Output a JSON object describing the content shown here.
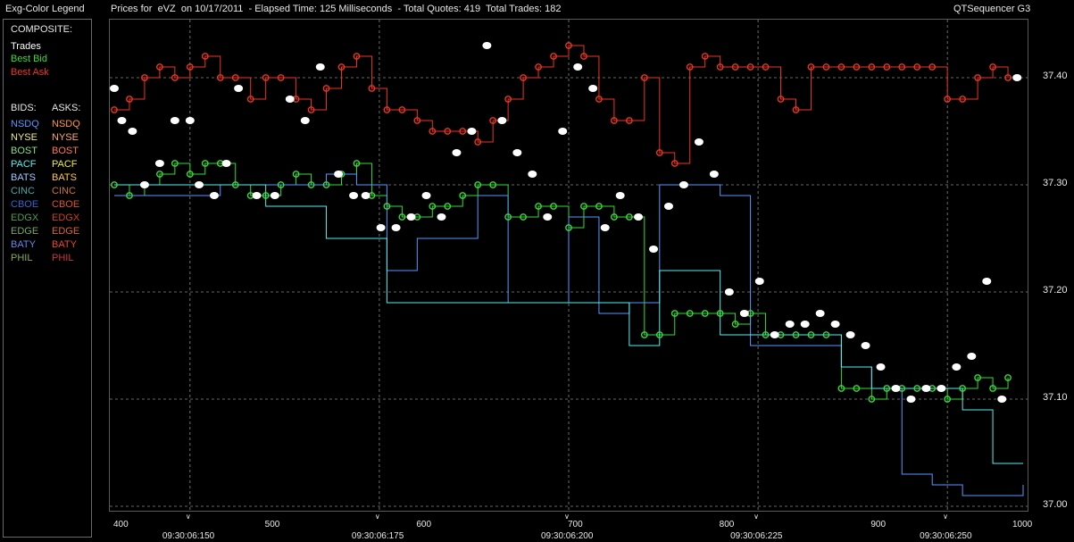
{
  "window": {
    "legend_title": "Exg-Color Legend",
    "chart_title": "Prices for  eVZ  on 10/17/2011  - Elapsed Time: 125 Milliseconds  - Total Quotes: 419  Total Trades: 182",
    "app_name": "QTSequencer G3"
  },
  "legend": {
    "composite_label": "COMPOSITE:",
    "composite_items": [
      {
        "label": "Trades",
        "color": "#ffffff"
      },
      {
        "label": "Best Bid",
        "color": "#33dd33"
      },
      {
        "label": "Best Ask",
        "color": "#ee3322"
      }
    ],
    "bids_label": "BIDS:",
    "asks_label": "ASKS:",
    "exchanges": [
      {
        "bid": "NSDQ",
        "ask": "NSDQ",
        "bid_color": "#5599ff",
        "ask_color": "#ff9933"
      },
      {
        "bid": "NYSE",
        "ask": "NYSE",
        "bid_color": "#eeee88",
        "ask_color": "#ffaa66"
      },
      {
        "bid": "BOST",
        "ask": "BOST",
        "bid_color": "#88dd88",
        "ask_color": "#ff7755"
      },
      {
        "bid": "PACF",
        "ask": "PACF",
        "bid_color": "#55eeee",
        "ask_color": "#eeee33"
      },
      {
        "bid": "BATS",
        "ask": "BATS",
        "bid_color": "#99ccff",
        "ask_color": "#ffcc33"
      },
      {
        "bid": "CINC",
        "ask": "CINC",
        "bid_color": "#44aaaa",
        "ask_color": "#cc7733"
      },
      {
        "bid": "CBOE",
        "ask": "CBOE",
        "bid_color": "#3366cc",
        "ask_color": "#dd5522"
      },
      {
        "bid": "EDGX",
        "ask": "EDGX",
        "bid_color": "#559955",
        "ask_color": "#cc4422"
      },
      {
        "bid": "EDGE",
        "ask": "EDGE",
        "bid_color": "#77aa66",
        "ask_color": "#dd6633"
      },
      {
        "bid": "BATY",
        "ask": "BATY",
        "bid_color": "#6688ee",
        "ask_color": "#ee4433"
      },
      {
        "bid": "PHIL",
        "ask": "PHIL",
        "bid_color": "#88aa55",
        "ask_color": "#cc3344"
      }
    ]
  },
  "chart_data": {
    "type": "scatter",
    "title": "Prices for  eVZ  on 10/17/2011",
    "xlabel": "",
    "ylabel": "",
    "xlim": [
      400,
      1000
    ],
    "ylim": [
      37.0,
      37.45
    ],
    "x_ticks": [
      "400",
      "500",
      "600",
      "700",
      "800",
      "900",
      "1000"
    ],
    "time_ticks": [
      {
        "x": 450,
        "label": "09:30:06:150"
      },
      {
        "x": 575,
        "label": "09:30:06:175"
      },
      {
        "x": 700,
        "label": "09:30:06:200"
      },
      {
        "x": 825,
        "label": "09:30:06:225"
      },
      {
        "x": 950,
        "label": "09:30:06:250"
      }
    ],
    "y_ticks": [
      "37.40",
      "37.30",
      "37.20",
      "37.10",
      "37.00"
    ],
    "grid": true,
    "series": [
      {
        "name": "Best Ask",
        "color": "#ee3322",
        "points": [
          [
            400,
            37.37
          ],
          [
            410,
            37.38
          ],
          [
            420,
            37.4
          ],
          [
            430,
            37.41
          ],
          [
            440,
            37.4
          ],
          [
            450,
            37.41
          ],
          [
            460,
            37.42
          ],
          [
            470,
            37.4
          ],
          [
            480,
            37.4
          ],
          [
            490,
            37.38
          ],
          [
            500,
            37.4
          ],
          [
            510,
            37.4
          ],
          [
            520,
            37.38
          ],
          [
            530,
            37.37
          ],
          [
            540,
            37.39
          ],
          [
            550,
            37.41
          ],
          [
            560,
            37.42
          ],
          [
            570,
            37.39
          ],
          [
            580,
            37.37
          ],
          [
            590,
            37.37
          ],
          [
            600,
            37.36
          ],
          [
            610,
            37.35
          ],
          [
            620,
            37.35
          ],
          [
            630,
            37.35
          ],
          [
            640,
            37.34
          ],
          [
            650,
            37.36
          ],
          [
            660,
            37.38
          ],
          [
            670,
            37.4
          ],
          [
            680,
            37.41
          ],
          [
            690,
            37.42
          ],
          [
            700,
            37.43
          ],
          [
            710,
            37.42
          ],
          [
            720,
            37.38
          ],
          [
            730,
            37.36
          ],
          [
            740,
            37.36
          ],
          [
            750,
            37.4
          ],
          [
            760,
            37.33
          ],
          [
            770,
            37.32
          ],
          [
            780,
            37.41
          ],
          [
            790,
            37.42
          ],
          [
            800,
            37.41
          ],
          [
            810,
            37.41
          ],
          [
            820,
            37.41
          ],
          [
            830,
            37.41
          ],
          [
            840,
            37.38
          ],
          [
            850,
            37.37
          ],
          [
            860,
            37.41
          ],
          [
            870,
            37.41
          ],
          [
            880,
            37.41
          ],
          [
            890,
            37.41
          ],
          [
            900,
            37.41
          ],
          [
            910,
            37.41
          ],
          [
            920,
            37.41
          ],
          [
            930,
            37.41
          ],
          [
            940,
            37.41
          ],
          [
            950,
            37.38
          ],
          [
            960,
            37.38
          ],
          [
            970,
            37.4
          ],
          [
            980,
            37.41
          ],
          [
            990,
            37.4
          ]
        ]
      },
      {
        "name": "Best Bid",
        "color": "#33dd33",
        "points": [
          [
            400,
            37.3
          ],
          [
            410,
            37.29
          ],
          [
            420,
            37.3
          ],
          [
            430,
            37.31
          ],
          [
            440,
            37.32
          ],
          [
            450,
            37.31
          ],
          [
            460,
            37.32
          ],
          [
            470,
            37.32
          ],
          [
            480,
            37.3
          ],
          [
            490,
            37.29
          ],
          [
            500,
            37.29
          ],
          [
            510,
            37.3
          ],
          [
            520,
            37.31
          ],
          [
            530,
            37.3
          ],
          [
            540,
            37.3
          ],
          [
            550,
            37.31
          ],
          [
            560,
            37.32
          ],
          [
            570,
            37.29
          ],
          [
            580,
            37.28
          ],
          [
            590,
            37.27
          ],
          [
            600,
            37.27
          ],
          [
            610,
            37.28
          ],
          [
            620,
            37.28
          ],
          [
            630,
            37.29
          ],
          [
            640,
            37.3
          ],
          [
            650,
            37.3
          ],
          [
            660,
            37.27
          ],
          [
            670,
            37.27
          ],
          [
            680,
            37.28
          ],
          [
            690,
            37.28
          ],
          [
            700,
            37.26
          ],
          [
            710,
            37.28
          ],
          [
            720,
            37.28
          ],
          [
            730,
            37.27
          ],
          [
            740,
            37.27
          ],
          [
            750,
            37.16
          ],
          [
            760,
            37.16
          ],
          [
            770,
            37.18
          ],
          [
            780,
            37.18
          ],
          [
            790,
            37.18
          ],
          [
            800,
            37.18
          ],
          [
            810,
            37.17
          ],
          [
            820,
            37.18
          ],
          [
            830,
            37.16
          ],
          [
            840,
            37.16
          ],
          [
            850,
            37.16
          ],
          [
            860,
            37.16
          ],
          [
            870,
            37.16
          ],
          [
            880,
            37.11
          ],
          [
            890,
            37.11
          ],
          [
            900,
            37.1
          ],
          [
            910,
            37.11
          ],
          [
            920,
            37.11
          ],
          [
            930,
            37.11
          ],
          [
            940,
            37.11
          ],
          [
            950,
            37.1
          ],
          [
            960,
            37.11
          ],
          [
            970,
            37.12
          ],
          [
            980,
            37.11
          ],
          [
            990,
            37.12
          ]
        ]
      },
      {
        "name": "Trades",
        "color": "#ffffff",
        "points": [
          [
            400,
            37.39
          ],
          [
            405,
            37.36
          ],
          [
            412,
            37.35
          ],
          [
            420,
            37.3
          ],
          [
            430,
            37.32
          ],
          [
            440,
            37.36
          ],
          [
            450,
            37.36
          ],
          [
            456,
            37.3
          ],
          [
            466,
            37.29
          ],
          [
            474,
            37.32
          ],
          [
            482,
            37.39
          ],
          [
            494,
            37.29
          ],
          [
            506,
            37.29
          ],
          [
            516,
            37.38
          ],
          [
            526,
            37.36
          ],
          [
            536,
            37.41
          ],
          [
            548,
            37.31
          ],
          [
            558,
            37.29
          ],
          [
            566,
            37.29
          ],
          [
            576,
            37.26
          ],
          [
            586,
            37.26
          ],
          [
            596,
            37.27
          ],
          [
            606,
            37.29
          ],
          [
            616,
            37.27
          ],
          [
            626,
            37.33
          ],
          [
            636,
            37.35
          ],
          [
            646,
            37.43
          ],
          [
            656,
            37.36
          ],
          [
            666,
            37.33
          ],
          [
            676,
            37.31
          ],
          [
            686,
            37.27
          ],
          [
            696,
            37.35
          ],
          [
            706,
            37.41
          ],
          [
            716,
            37.39
          ],
          [
            724,
            37.26
          ],
          [
            734,
            37.29
          ],
          [
            746,
            37.27
          ],
          [
            756,
            37.24
          ],
          [
            766,
            37.28
          ],
          [
            776,
            37.3
          ],
          [
            786,
            37.34
          ],
          [
            796,
            37.31
          ],
          [
            806,
            37.2
          ],
          [
            816,
            37.18
          ],
          [
            826,
            37.21
          ],
          [
            836,
            37.16
          ],
          [
            846,
            37.17
          ],
          [
            856,
            37.17
          ],
          [
            866,
            37.18
          ],
          [
            876,
            37.17
          ],
          [
            886,
            37.16
          ],
          [
            896,
            37.15
          ],
          [
            906,
            37.13
          ],
          [
            916,
            37.11
          ],
          [
            926,
            37.1
          ],
          [
            936,
            37.11
          ],
          [
            946,
            37.11
          ],
          [
            956,
            37.13
          ],
          [
            966,
            37.14
          ],
          [
            976,
            37.21
          ],
          [
            986,
            37.1
          ],
          [
            996,
            37.4
          ]
        ]
      },
      {
        "name": "NSDQ Bid",
        "color": "#5599ff",
        "points": [
          [
            400,
            37.29
          ],
          [
            450,
            37.29
          ],
          [
            470,
            37.3
          ],
          [
            500,
            37.3
          ],
          [
            540,
            37.31
          ],
          [
            560,
            37.3
          ],
          [
            580,
            37.22
          ],
          [
            600,
            37.25
          ],
          [
            640,
            37.29
          ],
          [
            660,
            37.19
          ],
          [
            700,
            37.27
          ],
          [
            720,
            37.18
          ],
          [
            740,
            37.19
          ],
          [
            760,
            37.3
          ],
          [
            800,
            37.29
          ],
          [
            820,
            37.15
          ],
          [
            860,
            37.15
          ],
          [
            880,
            37.13
          ],
          [
            900,
            37.11
          ],
          [
            920,
            37.03
          ],
          [
            940,
            37.02
          ],
          [
            960,
            37.01
          ],
          [
            980,
            37.01
          ],
          [
            1000,
            37.02
          ]
        ]
      },
      {
        "name": "PACF Bid",
        "color": "#55eeee",
        "points": [
          [
            400,
            37.3
          ],
          [
            430,
            37.3
          ],
          [
            460,
            37.3
          ],
          [
            500,
            37.28
          ],
          [
            540,
            37.25
          ],
          [
            560,
            37.25
          ],
          [
            580,
            37.19
          ],
          [
            620,
            37.19
          ],
          [
            660,
            37.19
          ],
          [
            700,
            37.19
          ],
          [
            740,
            37.15
          ],
          [
            760,
            37.22
          ],
          [
            800,
            37.16
          ],
          [
            840,
            37.16
          ],
          [
            880,
            37.13
          ],
          [
            900,
            37.11
          ],
          [
            930,
            37.11
          ],
          [
            960,
            37.09
          ],
          [
            980,
            37.04
          ],
          [
            1000,
            37.04
          ]
        ]
      }
    ]
  }
}
